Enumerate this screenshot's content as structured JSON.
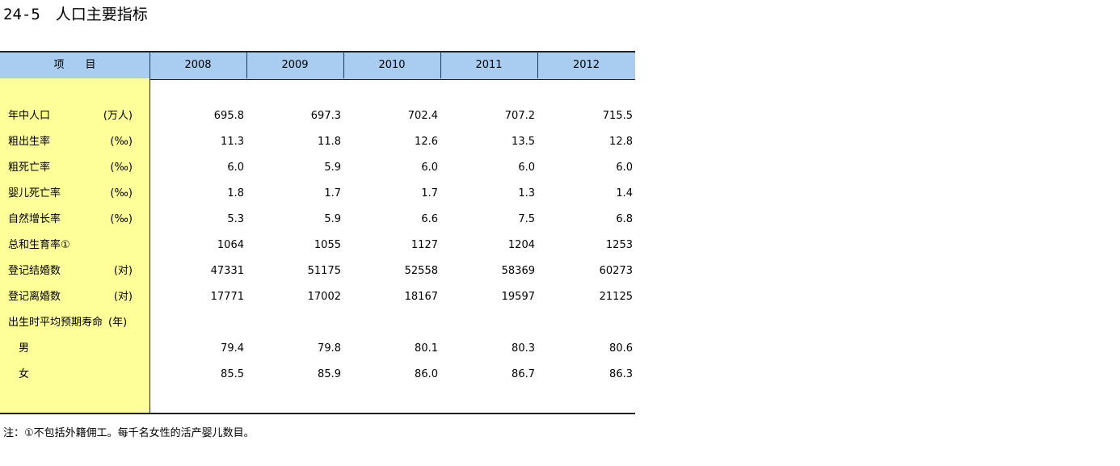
{
  "title": "24-5　人口主要指标",
  "table": {
    "header": [
      "项　　目",
      "2008",
      "2009",
      "2010",
      "2011",
      "2012"
    ],
    "rows": [
      {
        "label": "年中人口",
        "unit": "(万人)",
        "values": [
          "695.8",
          "697.3",
          "702.4",
          "707.2",
          "715.5"
        ]
      },
      {
        "label": "粗出生率",
        "unit": "(‰)",
        "values": [
          "11.3",
          "11.8",
          "12.6",
          "13.5",
          "12.8"
        ]
      },
      {
        "label": "粗死亡率",
        "unit": "(‰)",
        "values": [
          "6.0",
          "5.9",
          "6.0",
          "6.0",
          "6.0"
        ]
      },
      {
        "label": "婴儿死亡率",
        "unit": "(‰)",
        "values": [
          "1.8",
          "1.7",
          "1.7",
          "1.3",
          "1.4"
        ]
      },
      {
        "label": "自然增长率",
        "unit": "(‰)",
        "values": [
          "5.3",
          "5.9",
          "6.6",
          "7.5",
          "6.8"
        ]
      },
      {
        "label": "总和生育率①",
        "values": [
          "1064",
          "1055",
          "1127",
          "1204",
          "1253"
        ]
      },
      {
        "label": "登记结婚数",
        "unit": "(对)",
        "values": [
          "47331",
          "51175",
          "52558",
          "58369",
          "60273"
        ]
      },
      {
        "label": "登记离婚数",
        "unit": "(对)",
        "values": [
          "17771",
          "17002",
          "18167",
          "19597",
          "21125"
        ]
      },
      {
        "label": "出生时平均预期寿命",
        "unit": "(年)"
      },
      {
        "label": "　男",
        "values": [
          "79.4",
          "79.8",
          "80.1",
          "80.3",
          "80.6"
        ]
      },
      {
        "label": "　女",
        "values": [
          "85.5",
          "85.9",
          "86.0",
          "86.7",
          "86.3"
        ]
      }
    ]
  },
  "note": "注：①不包括外籍佣工。每千名女性的活产婴儿数目。"
}
